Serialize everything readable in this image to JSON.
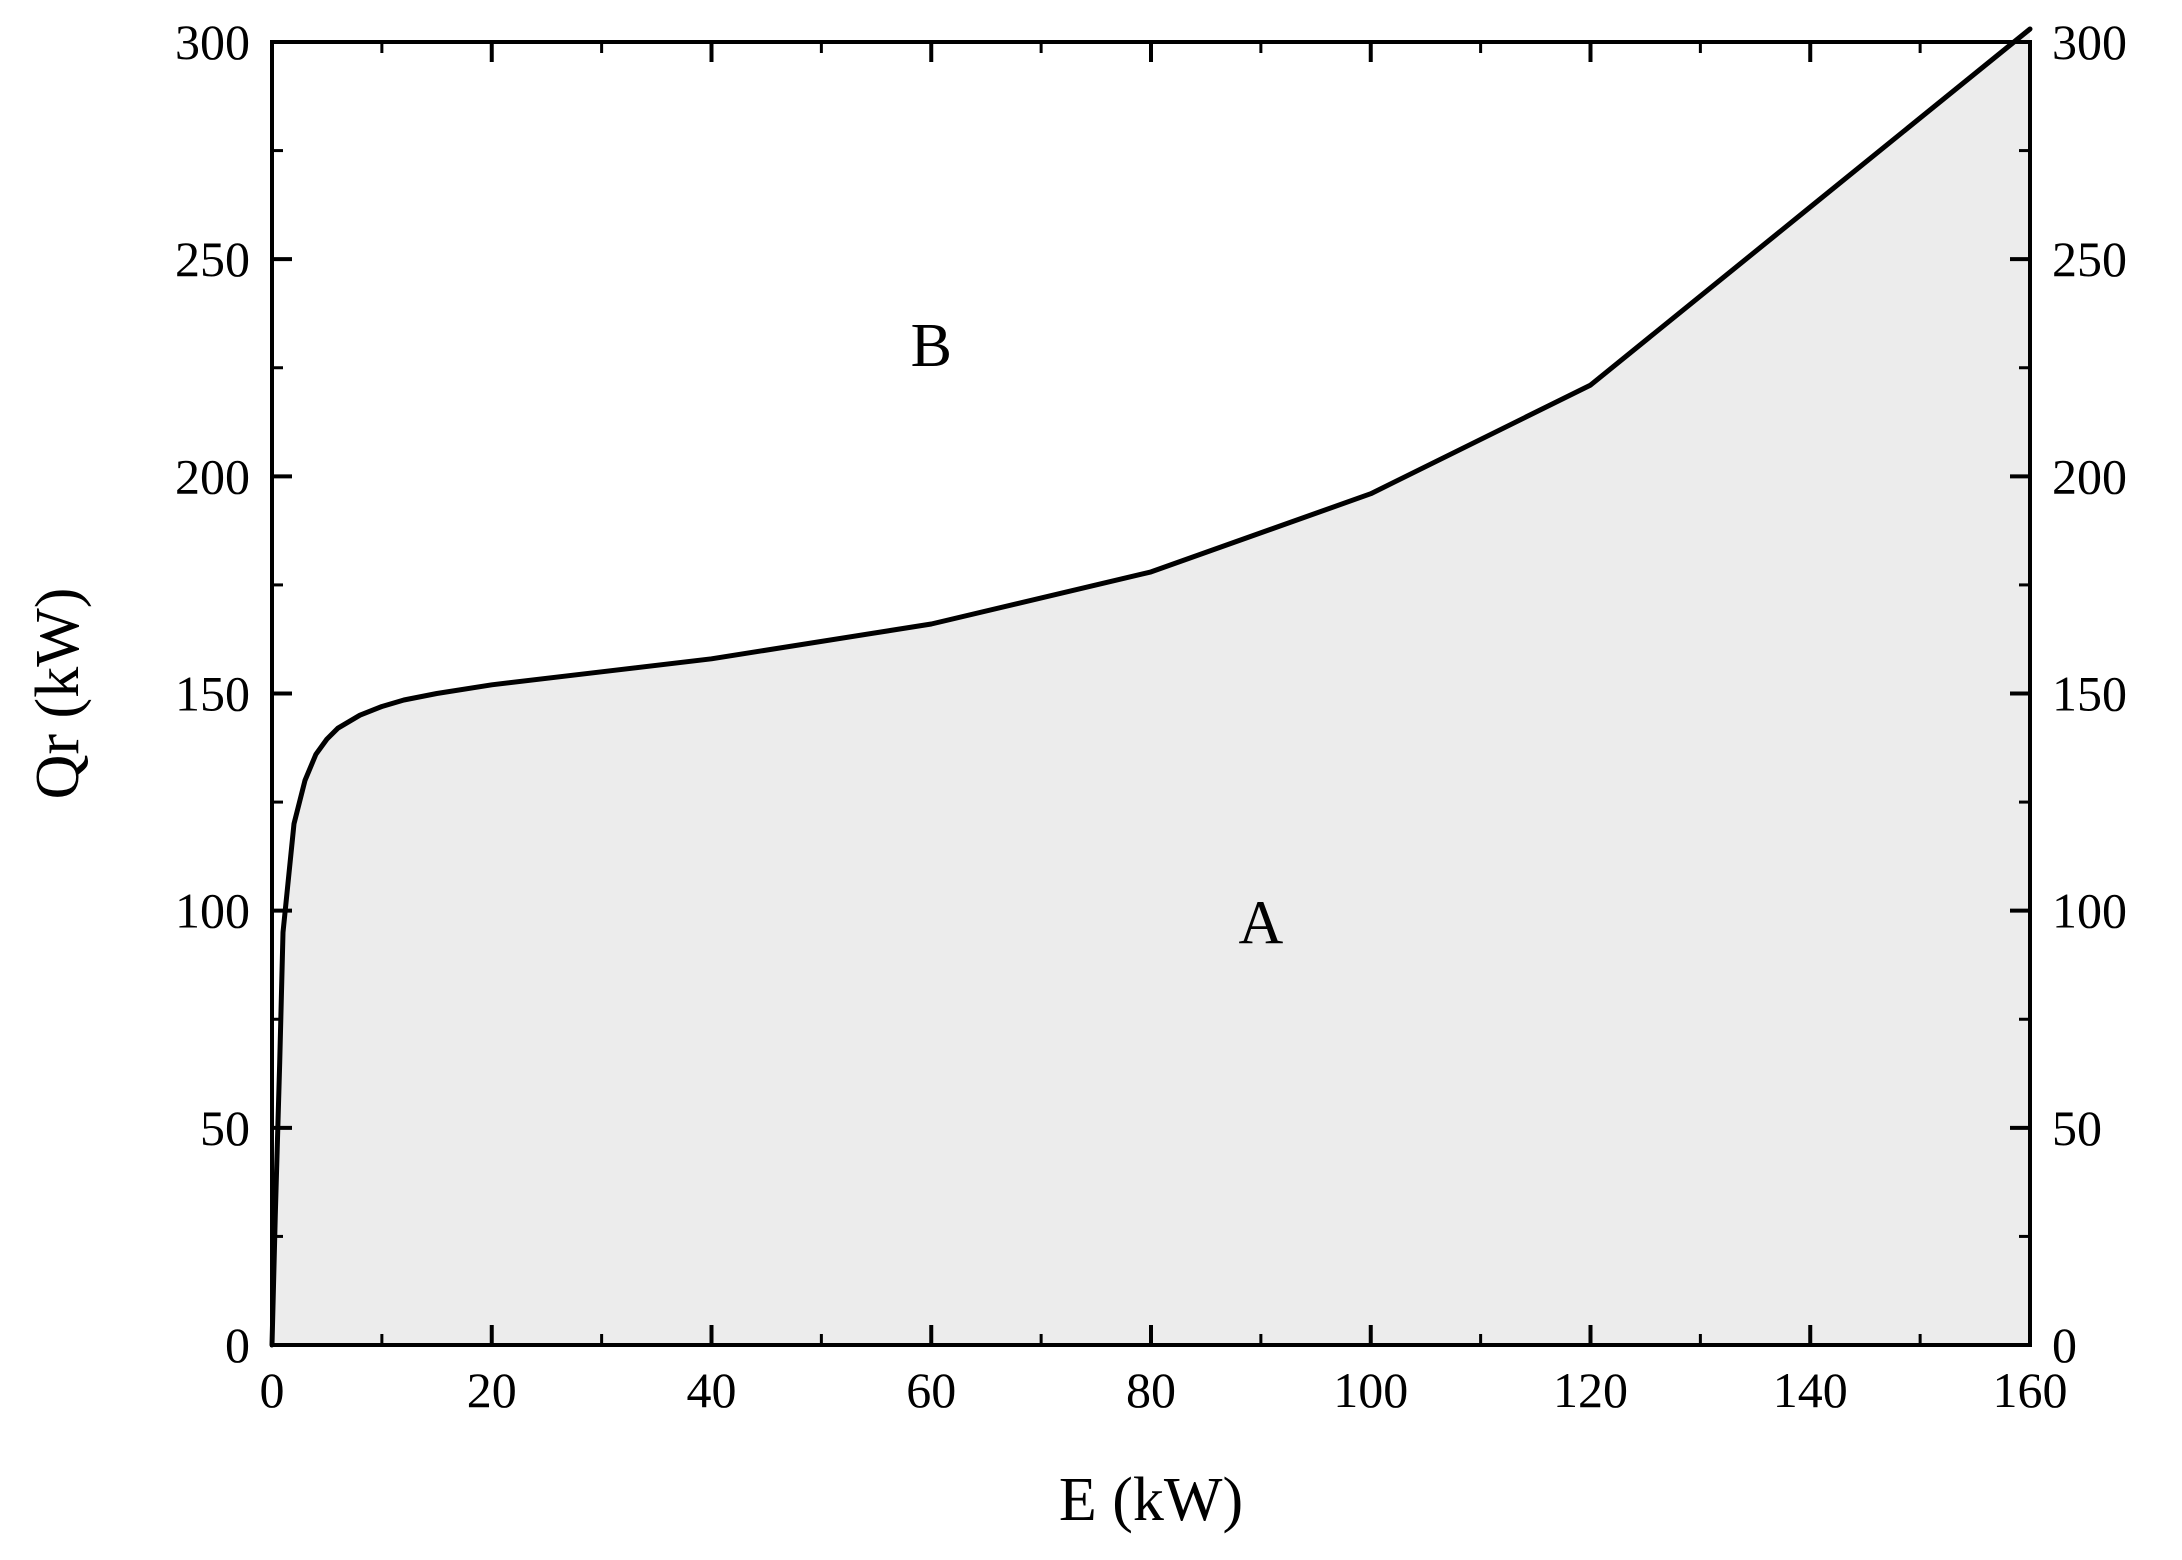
{
  "chart_data": {
    "type": "area",
    "xlabel": "E (kW)",
    "ylabel": "Qr (kW)",
    "xlim": [
      0,
      160
    ],
    "ylim": [
      0,
      300
    ],
    "x_ticks": [
      0,
      20,
      40,
      60,
      80,
      100,
      120,
      140,
      160
    ],
    "y_ticks": [
      0,
      50,
      100,
      150,
      200,
      250,
      300
    ],
    "right_y_axis_mirrored": true,
    "grid": false,
    "series": [
      {
        "x": [
          0,
          0.3,
          0.7,
          1,
          2,
          3,
          4,
          5,
          6,
          8,
          10,
          12,
          15,
          20,
          30,
          40,
          60,
          80,
          100,
          120,
          140,
          160
        ],
        "y": [
          0,
          30,
          65,
          95,
          120,
          130,
          136,
          139.5,
          142,
          145,
          147,
          148.5,
          150,
          152,
          155,
          158,
          166,
          178,
          196,
          221,
          262,
          303
        ]
      }
    ],
    "annotations": [
      {
        "text": "A",
        "x": 90,
        "y": 97
      },
      {
        "text": "B",
        "x": 60,
        "y": 230
      }
    ],
    "colors": {
      "fill": "#ececec",
      "line": "#000000",
      "axis": "#000000"
    }
  }
}
